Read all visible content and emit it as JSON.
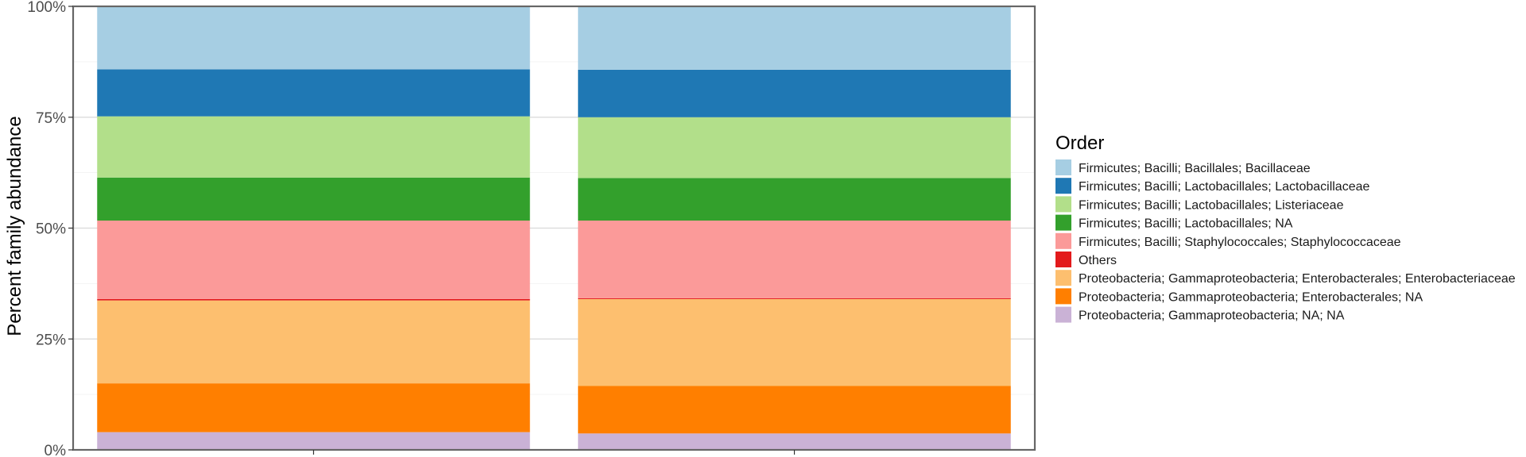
{
  "chart_data": {
    "type": "bar",
    "stacked": true,
    "title": "",
    "xlabel": "",
    "ylabel": "Percent family abundance",
    "ylim": [
      0,
      100
    ],
    "y_ticks": [
      "0%",
      "25%",
      "50%",
      "75%",
      "100%"
    ],
    "categories": [
      "",
      ""
    ],
    "legend_title": "Order",
    "legend_position": "right",
    "grid": true,
    "series": [
      {
        "name": "Proteobacteria; Gammaproteobacteria; NA; NA",
        "color": "#cab2d6",
        "values": [
          4.0,
          3.7
        ]
      },
      {
        "name": "Proteobacteria; Gammaproteobacteria; Enterobacterales; NA",
        "color": "#ff7f00",
        "values": [
          11.0,
          10.7
        ]
      },
      {
        "name": "Proteobacteria; Gammaproteobacteria; Enterobacterales; Enterobacteriaceae",
        "color": "#fdbf6f",
        "values": [
          18.7,
          19.6
        ]
      },
      {
        "name": "Others",
        "color": "#e31a1c",
        "values": [
          0.3,
          0.2
        ]
      },
      {
        "name": "Firmicutes; Bacilli; Staphylococcales; Staphylococcaceae",
        "color": "#fb9a99",
        "values": [
          17.7,
          17.5
        ]
      },
      {
        "name": "Firmicutes; Bacilli; Lactobacillales; NA",
        "color": "#33a02c",
        "values": [
          9.7,
          9.6
        ]
      },
      {
        "name": "Firmicutes; Bacilli; Lactobacillales; Listeriaceae",
        "color": "#b2df8a",
        "values": [
          13.8,
          13.7
        ]
      },
      {
        "name": "Firmicutes; Bacilli; Lactobacillales; Lactobacillaceae",
        "color": "#1f78b4",
        "values": [
          10.6,
          10.7
        ]
      },
      {
        "name": "Firmicutes; Bacilli; Bacillales; Bacillaceae",
        "color": "#a6cee3",
        "values": [
          14.2,
          14.3
        ]
      }
    ],
    "legend_order": [
      "Firmicutes; Bacilli; Bacillales; Bacillaceae",
      "Firmicutes; Bacilli; Lactobacillales; Lactobacillaceae",
      "Firmicutes; Bacilli; Lactobacillales; Listeriaceae",
      "Firmicutes; Bacilli; Lactobacillales; NA",
      "Firmicutes; Bacilli; Staphylococcales; Staphylococcaceae",
      "Others",
      "Proteobacteria; Gammaproteobacteria; Enterobacterales; Enterobacteriaceae",
      "Proteobacteria; Gammaproteobacteria; Enterobacterales; NA",
      "Proteobacteria; Gammaproteobacteria; NA; NA"
    ]
  }
}
